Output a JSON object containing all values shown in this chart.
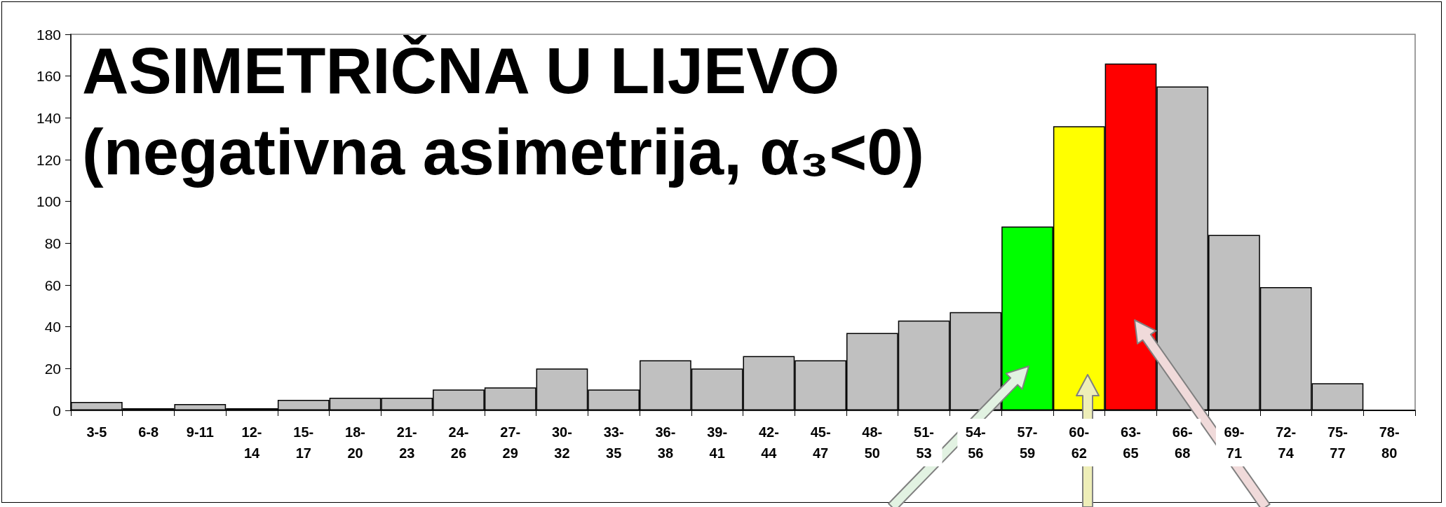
{
  "chart_data": {
    "type": "bar",
    "title": "ASIMETRIČNA U LIJEVO",
    "subtitle": "(negativna asimetrija, α₃<0)",
    "categories": [
      "3-5",
      "6-8",
      "9-11",
      "12-14",
      "15-17",
      "18-20",
      "21-23",
      "24-26",
      "27-29",
      "30-32",
      "33-35",
      "36-38",
      "39-41",
      "42-44",
      "45-47",
      "48-50",
      "51-53",
      "54-56",
      "57-59",
      "60-62",
      "63-65",
      "66-68",
      "69-71",
      "72-74",
      "75-77",
      "78-80"
    ],
    "values": [
      4,
      1,
      3,
      1,
      5,
      6,
      6,
      10,
      11,
      20,
      10,
      24,
      20,
      26,
      24,
      37,
      43,
      47,
      88,
      136,
      166,
      155,
      84,
      59,
      13,
      0
    ],
    "colors": [
      "#c0c0c0",
      "#c0c0c0",
      "#c0c0c0",
      "#c0c0c0",
      "#c0c0c0",
      "#c0c0c0",
      "#c0c0c0",
      "#c0c0c0",
      "#c0c0c0",
      "#c0c0c0",
      "#c0c0c0",
      "#c0c0c0",
      "#c0c0c0",
      "#c0c0c0",
      "#c0c0c0",
      "#c0c0c0",
      "#c0c0c0",
      "#c0c0c0",
      "#00ff00",
      "#ffff00",
      "#ff0000",
      "#c0c0c0",
      "#c0c0c0",
      "#c0c0c0",
      "#c0c0c0",
      "#c0c0c0"
    ],
    "ylim": [
      0,
      180
    ],
    "yticks": [
      0,
      20,
      40,
      60,
      80,
      100,
      120,
      140,
      160,
      180
    ],
    "grid": false
  }
}
